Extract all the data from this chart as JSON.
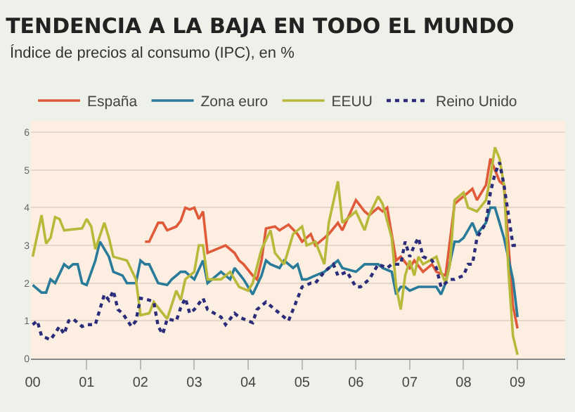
{
  "chart_data": {
    "type": "line",
    "title": "TENDENCIA A LA BAJA EN TODO EL MUNDO",
    "subtitle": "Índice de precios al consumo (IPC), en %",
    "xlim": [
      "1999-12-20",
      "2009-11-20"
    ],
    "xticks": [
      {
        "value": "2000",
        "label": "00"
      },
      {
        "value": "2001",
        "label": "01"
      },
      {
        "value": "2002",
        "label": "02"
      },
      {
        "value": "2003",
        "label": "03"
      },
      {
        "value": "2004",
        "label": "04"
      },
      {
        "value": "2005",
        "label": "05"
      },
      {
        "value": "2006",
        "label": "06"
      },
      {
        "value": "2007",
        "label": "07"
      },
      {
        "value": "2008",
        "label": "08"
      },
      {
        "value": "2009",
        "label": "09"
      }
    ],
    "ylim": [
      0,
      6.3
    ],
    "yticks": [
      0,
      1,
      2,
      3,
      4,
      5,
      6
    ],
    "grid": "y",
    "legend": "top left",
    "marker": "none",
    "series": [
      {
        "name": "España",
        "color": "#e05a3a",
        "x": [
          "2002-02",
          "2002-03",
          "2002-05",
          "2002-06",
          "2002-07",
          "2002-09",
          "2002-10",
          "2002-11",
          "2002-12",
          "2003-01",
          "2003-02",
          "2003-03",
          "2003-04",
          "2003-06",
          "2003-08",
          "2003-10",
          "2003-11",
          "2003-12",
          "2004-02",
          "2004-03",
          "2004-04",
          "2004-05",
          "2004-07",
          "2004-08",
          "2004-10",
          "2004-12",
          "2005-01",
          "2005-03",
          "2005-04",
          "2005-06",
          "2005-07",
          "2005-09",
          "2005-10",
          "2006-01",
          "2006-03",
          "2006-04",
          "2006-06",
          "2006-07",
          "2006-08",
          "2006-10",
          "2006-11",
          "2007-01",
          "2007-02",
          "2007-04",
          "2007-06",
          "2007-07",
          "2007-09",
          "2007-11",
          "2007-12",
          "2008-01",
          "2008-03",
          "2008-04",
          "2008-06",
          "2008-07",
          "2008-09",
          "2008-10",
          "2008-11",
          "2008-12",
          "2009-01"
        ],
        "values": [
          3.1,
          3.1,
          3.6,
          3.6,
          3.4,
          3.5,
          3.65,
          4.0,
          3.95,
          4.0,
          3.7,
          3.9,
          2.8,
          2.9,
          3.0,
          2.8,
          2.6,
          2.5,
          2.2,
          2.1,
          2.6,
          3.45,
          3.5,
          3.4,
          3.55,
          3.3,
          3.1,
          3.3,
          3.0,
          3.2,
          3.3,
          3.6,
          3.4,
          4.2,
          3.9,
          3.8,
          4.0,
          3.9,
          4.0,
          2.6,
          2.7,
          2.4,
          2.6,
          2.3,
          2.5,
          2.3,
          2.2,
          4.1,
          4.2,
          4.3,
          4.5,
          4.2,
          4.6,
          5.3,
          4.7,
          4.6,
          3.0,
          1.4,
          0.8
        ]
      },
      {
        "name": "Zona euro",
        "color": "#2a7a9a",
        "x": [
          "2000-01",
          "2000-03",
          "2000-04",
          "2000-05",
          "2000-06",
          "2000-08",
          "2000-09",
          "2000-10",
          "2000-11",
          "2000-12",
          "2001-01",
          "2001-03",
          "2001-04",
          "2001-06",
          "2001-07",
          "2001-09",
          "2001-10",
          "2001-12",
          "2002-01",
          "2002-02",
          "2002-03",
          "2002-05",
          "2002-07",
          "2002-08",
          "2002-10",
          "2002-11",
          "2003-01",
          "2003-03",
          "2003-04",
          "2003-05",
          "2003-07",
          "2003-09",
          "2003-10",
          "2003-12",
          "2004-01",
          "2004-02",
          "2004-04",
          "2004-05",
          "2004-06",
          "2004-08",
          "2004-09",
          "2004-11",
          "2004-12",
          "2005-01",
          "2005-02",
          "2005-04",
          "2005-06",
          "2005-08",
          "2005-09",
          "2005-10",
          "2006-01",
          "2006-03",
          "2006-04",
          "2006-06",
          "2006-07",
          "2006-09",
          "2006-10",
          "2006-11",
          "2006-12",
          "2007-01",
          "2007-03",
          "2007-04",
          "2007-07",
          "2007-08",
          "2007-09",
          "2007-11",
          "2007-12",
          "2008-01",
          "2008-03",
          "2008-04",
          "2008-06",
          "2008-07",
          "2008-08",
          "2008-09",
          "2008-10",
          "2008-12",
          "2009-01"
        ],
        "values": [
          1.95,
          1.75,
          1.75,
          2.1,
          2.0,
          2.5,
          2.4,
          2.5,
          2.5,
          2.0,
          1.95,
          2.6,
          3.1,
          2.7,
          2.3,
          2.2,
          2.0,
          2.0,
          2.6,
          2.5,
          2.5,
          2.0,
          1.95,
          2.1,
          2.3,
          2.3,
          2.1,
          2.6,
          2.0,
          2.1,
          2.3,
          2.1,
          2.4,
          2.1,
          1.9,
          1.7,
          2.2,
          2.6,
          2.5,
          2.4,
          2.6,
          2.4,
          2.5,
          2.1,
          2.1,
          2.2,
          2.3,
          2.5,
          2.6,
          2.4,
          2.3,
          2.5,
          2.5,
          2.5,
          2.4,
          2.3,
          1.7,
          1.9,
          1.9,
          1.8,
          1.9,
          1.9,
          1.9,
          1.7,
          2.0,
          3.1,
          3.1,
          3.2,
          3.6,
          3.3,
          3.6,
          4.0,
          4.0,
          3.6,
          3.2,
          2.1,
          1.1
        ]
      },
      {
        "name": "EEUU",
        "color": "#b8b83a",
        "x": [
          "2000-01",
          "2000-03",
          "2000-04",
          "2000-05",
          "2000-06",
          "2000-07",
          "2000-08",
          "2000-12",
          "2001-01",
          "2001-02",
          "2001-03",
          "2001-05",
          "2001-06",
          "2001-07",
          "2001-10",
          "2001-12",
          "2002-01",
          "2002-03",
          "2002-04",
          "2002-07",
          "2002-09",
          "2002-10",
          "2002-11",
          "2003-01",
          "2003-02",
          "2003-03",
          "2003-04",
          "2003-07",
          "2003-09",
          "2003-11",
          "2004-01",
          "2004-02",
          "2004-04",
          "2004-06",
          "2004-07",
          "2004-09",
          "2004-11",
          "2005-01",
          "2005-02",
          "2005-04",
          "2005-06",
          "2005-07",
          "2005-09",
          "2005-10",
          "2006-01",
          "2006-03",
          "2006-04",
          "2006-06",
          "2006-07",
          "2006-09",
          "2006-10",
          "2006-11",
          "2006-12",
          "2007-01",
          "2007-02",
          "2007-03",
          "2007-04",
          "2007-07",
          "2007-08",
          "2007-09",
          "2007-10",
          "2007-11",
          "2008-01",
          "2008-02",
          "2008-04",
          "2008-06",
          "2008-07",
          "2008-08",
          "2008-09",
          "2008-10",
          "2008-11",
          "2008-12",
          "2009-01"
        ],
        "values": [
          2.7,
          3.8,
          3.05,
          3.2,
          3.75,
          3.7,
          3.4,
          3.45,
          3.7,
          3.5,
          2.9,
          3.6,
          3.2,
          2.7,
          2.6,
          2.1,
          1.15,
          1.2,
          1.5,
          1.05,
          1.8,
          1.55,
          2.1,
          2.3,
          3.0,
          3.0,
          2.1,
          2.1,
          2.3,
          1.9,
          1.8,
          2.0,
          2.9,
          3.4,
          2.8,
          2.5,
          3.3,
          3.5,
          3.0,
          3.1,
          2.5,
          3.6,
          4.7,
          3.6,
          3.9,
          3.4,
          3.8,
          4.3,
          4.1,
          3.2,
          1.9,
          1.3,
          2.2,
          2.6,
          2.2,
          2.7,
          2.5,
          2.7,
          2.3,
          2.0,
          2.5,
          4.2,
          4.4,
          4.0,
          3.9,
          4.2,
          4.8,
          5.6,
          5.3,
          4.6,
          2.3,
          0.6,
          0.1
        ]
      },
      {
        "name": "Reino Unido",
        "color": "#2c2c7a",
        "line_style": "dotted",
        "x": [
          "2000-01",
          "2000-02",
          "2000-03",
          "2000-04",
          "2000-05",
          "2000-07",
          "2000-08",
          "2000-09",
          "2000-10",
          "2000-12",
          "2001-01",
          "2001-03",
          "2001-05",
          "2001-06",
          "2001-07",
          "2001-08",
          "2001-09",
          "2001-11",
          "2001-12",
          "2002-01",
          "2002-03",
          "2002-04",
          "2002-05",
          "2002-06",
          "2002-07",
          "2002-09",
          "2002-10",
          "2002-11",
          "2002-12",
          "2003-01",
          "2003-03",
          "2003-04",
          "2003-07",
          "2003-08",
          "2003-10",
          "2003-11",
          "2004-01",
          "2004-02",
          "2004-03",
          "2004-05",
          "2004-07",
          "2004-08",
          "2004-10",
          "2004-11",
          "2005-01",
          "2005-03",
          "2005-04",
          "2005-06",
          "2005-08",
          "2005-09",
          "2005-11",
          "2006-01",
          "2006-02",
          "2006-04",
          "2006-06",
          "2006-08",
          "2006-09",
          "2006-11",
          "2006-12",
          "2007-01",
          "2007-02",
          "2007-03",
          "2007-04",
          "2007-06",
          "2007-07",
          "2007-08",
          "2007-10",
          "2007-11",
          "2008-01",
          "2008-02",
          "2008-03",
          "2008-04",
          "2008-06",
          "2008-07",
          "2008-08",
          "2008-09",
          "2008-10",
          "2008-11",
          "2008-12",
          "2009-01"
        ],
        "values": [
          0.9,
          1.0,
          0.6,
          0.55,
          0.5,
          0.85,
          0.65,
          1.0,
          1.05,
          0.85,
          0.9,
          0.9,
          1.7,
          1.55,
          1.8,
          1.3,
          1.2,
          0.85,
          1.0,
          1.6,
          1.55,
          1.5,
          0.85,
          0.65,
          1.05,
          1.0,
          1.35,
          1.6,
          1.2,
          1.3,
          1.6,
          1.3,
          1.1,
          0.9,
          1.2,
          1.1,
          1.0,
          0.95,
          1.3,
          1.5,
          1.3,
          1.2,
          1.0,
          1.3,
          1.9,
          2.0,
          2.0,
          2.3,
          2.5,
          2.2,
          2.3,
          1.9,
          1.9,
          2.1,
          2.5,
          2.4,
          2.5,
          2.5,
          3.1,
          2.7,
          3.0,
          3.2,
          2.7,
          2.6,
          2.4,
          1.9,
          2.1,
          2.1,
          2.2,
          2.5,
          2.5,
          3.2,
          3.6,
          4.4,
          4.9,
          5.2,
          4.6,
          3.8,
          3.0,
          3.0
        ]
      }
    ]
  }
}
